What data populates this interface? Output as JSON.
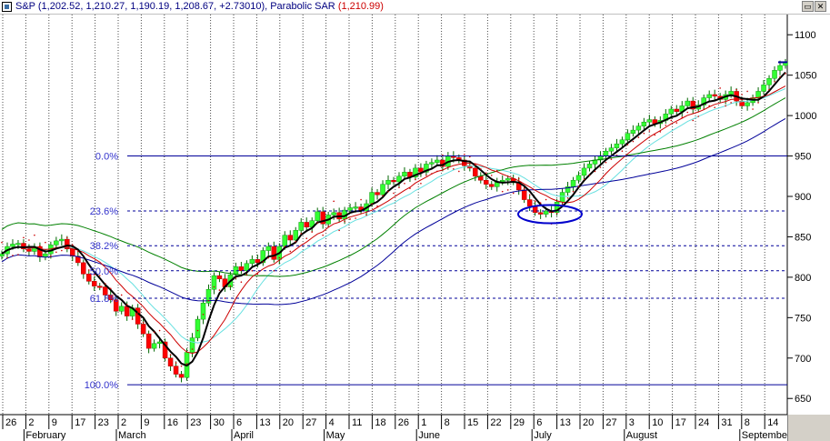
{
  "window": {
    "title_prefix": "S&P (1,202.52, 1,210.27, 1,190.19, 1,208.67, +2.73010), Parabolic SAR ",
    "sar_value": "(1,210.99)",
    "restore_glyph": "▭",
    "close_glyph": "✕"
  },
  "colors": {
    "up_candle": "#33ff33",
    "down_candle": "#ff0000",
    "ma_black": "#000000",
    "ma_red": "#cc0000",
    "ma_green": "#008000",
    "ma_blue": "#000099",
    "ma_cyan": "#66e0e0",
    "fib_label": "#3333cc",
    "ellipse": "#0000cc"
  },
  "chart_data": {
    "type": "candlestick",
    "title": "S&P",
    "ylim": [
      630,
      1125
    ],
    "y_ticks": [
      650,
      700,
      750,
      800,
      850,
      900,
      950,
      1000,
      1050,
      1100
    ],
    "x_ticks": [
      "26",
      "2",
      "9",
      "17",
      "23",
      "2",
      "9",
      "16",
      "23",
      "30",
      "6",
      "13",
      "20",
      "27",
      "4",
      "11",
      "18",
      "26",
      "1",
      "8",
      "15",
      "22",
      "29",
      "6",
      "13",
      "20",
      "27",
      "3",
      "10",
      "17",
      "24",
      "31",
      "8",
      "14"
    ],
    "months": [
      "February",
      "March",
      "April",
      "May",
      "June",
      "July",
      "August",
      "September"
    ],
    "fib_levels": [
      {
        "label": "0.0%",
        "value": 950
      },
      {
        "label": "23.6%",
        "value": 882
      },
      {
        "label": "38.2%",
        "value": 839
      },
      {
        "label": "50.0%",
        "value": 808
      },
      {
        "label": "61.8%",
        "value": 774
      },
      {
        "label": "100.0%",
        "value": 667
      }
    ],
    "series": [
      {
        "name": "S&P",
        "close": [
          829,
          838,
          841,
          842,
          835,
          832,
          838,
          825,
          829,
          840,
          845,
          847,
          835,
          826,
          818,
          804,
          795,
          789,
          788,
          778,
          772,
          758,
          764,
          752,
          762,
          742,
          730,
          712,
          718,
          720,
          700,
          690,
          680,
          676,
          707,
          725,
          748,
          768,
          785,
          802,
          798,
          788,
          803,
          813,
          808,
          817,
          822,
          818,
          833,
          838,
          822,
          838,
          852,
          846,
          858,
          868,
          862,
          870,
          881,
          866,
          877,
          880,
          872,
          883,
          886,
          887,
          882,
          891,
          905,
          902,
          915,
          920,
          918,
          925,
          930,
          924,
          935,
          930,
          940,
          942,
          945,
          937,
          950,
          948,
          945,
          938,
          935,
          925,
          920,
          915,
          912,
          918,
          920,
          922,
          918,
          908,
          896,
          888,
          880,
          878,
          882,
          880,
          893,
          905,
          912,
          920,
          926,
          935,
          940,
          945,
          950,
          956,
          960,
          965,
          970,
          978,
          982,
          987,
          992,
          995,
          990,
          994,
          1002,
          1008,
          1005,
          1012,
          1018,
          1008,
          1013,
          1022,
          1026,
          1024,
          1020,
          1026,
          1030,
          1018,
          1012,
          1016,
          1022,
          1030,
          1038,
          1046,
          1056,
          1062,
          1066
        ]
      }
    ]
  }
}
